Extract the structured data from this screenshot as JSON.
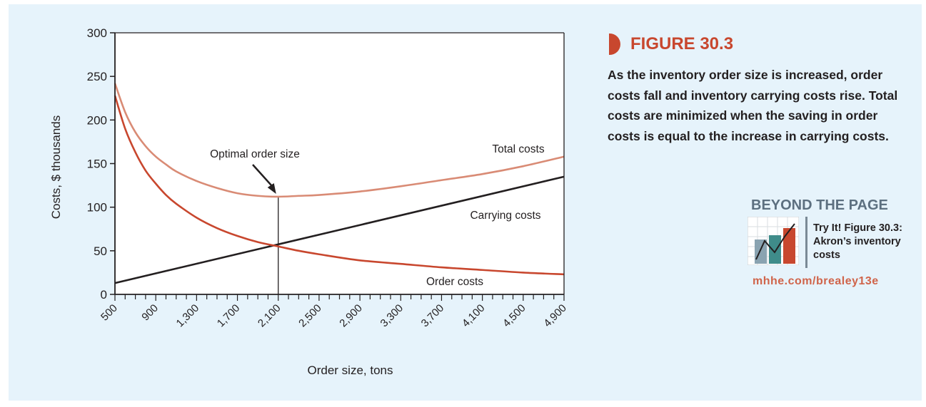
{
  "chart_data": {
    "type": "line",
    "xlabel": "Order size, tons",
    "ylabel": "Costs, $ thousands",
    "xlim": [
      500,
      4900
    ],
    "ylim": [
      0,
      300
    ],
    "x_ticks": [
      500,
      900,
      1300,
      1700,
      2100,
      2500,
      2900,
      3300,
      3700,
      4100,
      4500,
      4900
    ],
    "x_tick_labels": [
      "500",
      "900",
      "1,300",
      "1,700",
      "2,100",
      "2,500",
      "2,900",
      "3,300",
      "3,700",
      "4,100",
      "4,500",
      "4,900"
    ],
    "y_ticks": [
      0,
      50,
      100,
      150,
      200,
      250,
      300
    ],
    "y_tick_labels": [
      "0",
      "50",
      "100",
      "150",
      "200",
      "250",
      "300"
    ],
    "grid": false,
    "series": [
      {
        "name": "Total costs",
        "color": "#d98b75",
        "x": [
          500,
          600,
          700,
          800,
          900,
          1000,
          1100,
          1300,
          1500,
          1700,
          1900,
          2100,
          2300,
          2500,
          2900,
          3300,
          3700,
          4100,
          4500,
          4900
        ],
        "y": [
          242,
          209,
          186,
          170,
          158,
          149,
          141,
          130,
          122,
          116,
          113,
          112,
          113,
          114,
          118,
          124,
          131,
          138,
          147,
          158
        ]
      },
      {
        "name": "Carrying costs",
        "color": "#231f20",
        "x": [
          500,
          4900
        ],
        "y": [
          13,
          135
        ]
      },
      {
        "name": "Order costs",
        "color": "#c8472e",
        "x": [
          500,
          600,
          700,
          800,
          900,
          1000,
          1100,
          1300,
          1500,
          1700,
          1900,
          2100,
          2300,
          2500,
          2900,
          3300,
          3700,
          4100,
          4500,
          4900
        ],
        "y": [
          228,
          190,
          163,
          142,
          127,
          114,
          104,
          88,
          76,
          67,
          60,
          55,
          50,
          46,
          39,
          35,
          31,
          28,
          25,
          23
        ]
      }
    ],
    "annotations": [
      {
        "text": "Optimal order size",
        "x": 2100,
        "y": 112
      }
    ]
  },
  "figure": {
    "title": "FIGURE 30.3",
    "caption": "As the inventory order size is increased, order costs fall and inventory carrying costs rise. Total costs are minimized when the saving in order costs is equal to the increase in carrying costs."
  },
  "beyond": {
    "heading": "BEYOND THE PAGE",
    "text": "Try It! Figure 30.3: Akron’s inventory costs",
    "url": "mhhe.com/brealey13e"
  },
  "colors": {
    "accent": "#c8472e",
    "panel": "#e6f3fb",
    "total": "#d98b75",
    "order": "#c8472e",
    "carrying": "#231f20"
  }
}
